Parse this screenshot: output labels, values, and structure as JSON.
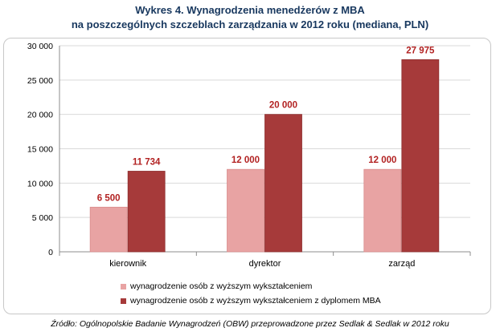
{
  "title_line1": "Wykres 4. Wynagrodzenia menedżerów z MBA",
  "title_line2": "na poszczególnych szczeblach zarządzania w 2012 roku (mediana, PLN)",
  "source": "Źródło: Ogólnopolskie Badanie Wynagrodzeń (OBW) przeprowadzone przez Sedlak & Sedlak w 2012 roku",
  "colors": {
    "series1": "#e8a3a3",
    "series2": "#a63a3a",
    "label": "#b22222",
    "grid": "#d9d9d9",
    "title": "#17375e"
  },
  "chart_data": {
    "type": "bar",
    "title": "Wykres 4. Wynagrodzenia menedżerów z MBA na poszczególnych szczeblach zarządzania w 2012 roku (mediana, PLN)",
    "categories": [
      "kierownik",
      "dyrektor",
      "zarząd"
    ],
    "series": [
      {
        "name": "wynagrodzenie osób z wyższym wykształceniem",
        "values": [
          6500,
          12000,
          12000
        ],
        "labels": [
          "6 500",
          "12 000",
          "12 000"
        ]
      },
      {
        "name": "wynagrodzenie osób z wyższym wykształceniem z dyplomem MBA",
        "values": [
          11734,
          20000,
          27975
        ],
        "labels": [
          "11 734",
          "20 000",
          "27 975"
        ]
      }
    ],
    "ylim": [
      0,
      30000
    ],
    "yticks": [
      0,
      5000,
      10000,
      15000,
      20000,
      25000,
      30000
    ],
    "ytick_labels": [
      "0",
      "5 000",
      "10 000",
      "15 000",
      "20 000",
      "25 000",
      "30 000"
    ],
    "grid": true,
    "legend_position": "bottom"
  }
}
